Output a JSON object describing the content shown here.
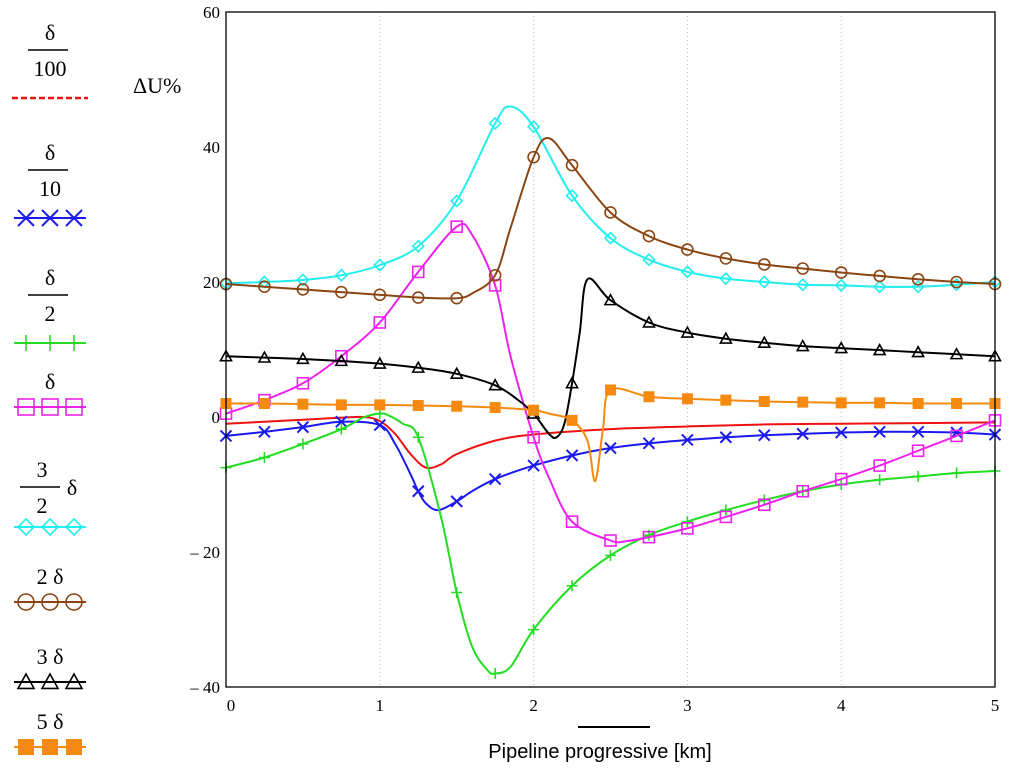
{
  "chart_data": {
    "type": "line",
    "title": "",
    "xlabel": "Pipeline progressive [km]",
    "ylabel": "ΔU%",
    "xlim": [
      0,
      5
    ],
    "ylim": [
      -40,
      60
    ],
    "xticks": [
      "0",
      "1",
      "2",
      "3",
      "4",
      "5"
    ],
    "yticks": [
      "– 40",
      "– 20",
      "0",
      "20",
      "40",
      "60"
    ],
    "yticks_values": [
      -40,
      -20,
      0,
      20,
      40,
      60
    ],
    "grid": "vertical-dotted",
    "legend_position": "left",
    "series": [
      {
        "name": "δ/100",
        "legend": {
          "num": "δ",
          "den": "100"
        },
        "color": "#ee1111",
        "marker": "none",
        "dash": "dashed-legend",
        "x": [
          0,
          0.25,
          0.5,
          0.75,
          0.9,
          1.0,
          1.1,
          1.2,
          1.3,
          1.4,
          1.5,
          1.75,
          2.0,
          2.5,
          3.0,
          3.5,
          4.0,
          4.5,
          5.0
        ],
        "y": [
          -1,
          -0.7,
          -0.4,
          -0.1,
          0,
          -0.6,
          -2.5,
          -5.5,
          -7.5,
          -7,
          -5.5,
          -3.5,
          -2.6,
          -1.8,
          -1.4,
          -1.1,
          -1.0,
          -0.9,
          -0.8
        ]
      },
      {
        "name": "δ/10",
        "legend": {
          "num": "δ",
          "den": "10"
        },
        "color": "#1a1aee",
        "marker": "x",
        "x": [
          0,
          0.25,
          0.5,
          0.75,
          1.0,
          1.1,
          1.2,
          1.25,
          1.3,
          1.38,
          1.5,
          1.6,
          1.75,
          2.0,
          2.25,
          2.5,
          2.75,
          3.0,
          3.25,
          3.5,
          3.75,
          4.0,
          4.25,
          4.5,
          4.75,
          5.0
        ],
        "y": [
          -2.8,
          -2.2,
          -1.5,
          -0.7,
          -1.2,
          -4,
          -8.5,
          -11,
          -12.8,
          -13.8,
          -12.5,
          -11,
          -9.2,
          -7.2,
          -5.7,
          -4.6,
          -3.9,
          -3.4,
          -3.0,
          -2.7,
          -2.5,
          -2.3,
          -2.2,
          -2.2,
          -2.3,
          -2.6
        ]
      },
      {
        "name": "δ/2",
        "legend": {
          "num": "δ",
          "den": "2"
        },
        "color": "#22dd22",
        "marker": "plus",
        "x": [
          0,
          0.25,
          0.5,
          0.75,
          0.9,
          1.0,
          1.05,
          1.15,
          1.25,
          1.4,
          1.5,
          1.6,
          1.7,
          1.75,
          1.85,
          2.0,
          2.25,
          2.5,
          2.75,
          3.0,
          3.25,
          3.5,
          3.75,
          4.0,
          4.25,
          4.5,
          4.75,
          5.0
        ],
        "y": [
          -7.5,
          -6,
          -4,
          -1.8,
          0,
          0.5,
          0.3,
          -1,
          -3,
          -15,
          -26,
          -34,
          -37.5,
          -38,
          -37,
          -31.5,
          -25,
          -20.5,
          -17.5,
          -15.5,
          -13.8,
          -12.3,
          -11,
          -10,
          -9.3,
          -8.8,
          -8.3,
          -8
        ]
      },
      {
        "name": "δ",
        "legend": {
          "num": "",
          "den": "δ"
        },
        "color": "#ee22ee",
        "marker": "square",
        "x": [
          0,
          0.25,
          0.5,
          0.75,
          1.0,
          1.25,
          1.5,
          1.6,
          1.75,
          1.85,
          2.0,
          2.1,
          2.25,
          2.5,
          2.6,
          2.75,
          3.0,
          3.25,
          3.5,
          3.75,
          4.0,
          4.25,
          4.5,
          4.75,
          5.0
        ],
        "y": [
          0.5,
          2.5,
          5,
          9,
          14,
          21.5,
          28.2,
          27,
          19.5,
          9,
          -3,
          -9,
          -15.5,
          -18.3,
          -18.4,
          -17.8,
          -16.5,
          -14.8,
          -13,
          -11,
          -9.2,
          -7.2,
          -5,
          -2.8,
          -0.5
        ]
      },
      {
        "name": "3/2 δ",
        "legend": {
          "num": "3",
          "den": "2",
          "suffix": "δ"
        },
        "color": "#22eeee",
        "marker": "diamond",
        "x": [
          0,
          0.25,
          0.5,
          0.75,
          1.0,
          1.25,
          1.5,
          1.75,
          1.85,
          2.0,
          2.25,
          2.5,
          2.75,
          3.0,
          3.25,
          3.5,
          3.75,
          4.0,
          4.25,
          4.5,
          4.75,
          5.0
        ],
        "y": [
          19.8,
          20,
          20.3,
          21,
          22.5,
          25.3,
          32,
          43.5,
          46,
          43,
          32.8,
          26.5,
          23.3,
          21.5,
          20.5,
          20,
          19.6,
          19.5,
          19.3,
          19.3,
          19.6,
          20
        ]
      },
      {
        "name": "2 δ",
        "legend": {
          "num": "2 δ",
          "den": ""
        },
        "color": "#8b4513",
        "marker": "circle",
        "x": [
          0,
          0.25,
          0.5,
          0.75,
          1.0,
          1.25,
          1.5,
          1.6,
          1.75,
          1.85,
          2.0,
          2.1,
          2.25,
          2.5,
          2.75,
          3.0,
          3.25,
          3.5,
          3.75,
          4.0,
          4.25,
          4.5,
          4.75,
          5.0
        ],
        "y": [
          19.7,
          19.3,
          18.9,
          18.5,
          18.1,
          17.7,
          17.6,
          18.3,
          21,
          28,
          38.5,
          41.3,
          37.3,
          30.3,
          26.8,
          24.8,
          23.5,
          22.6,
          22,
          21.4,
          20.9,
          20.4,
          20,
          19.7
        ]
      },
      {
        "name": "3 δ",
        "legend": {
          "num": "3 δ",
          "den": ""
        },
        "color": "#000000",
        "marker": "triangle",
        "x": [
          0,
          0.25,
          0.5,
          0.75,
          1.0,
          1.25,
          1.5,
          1.75,
          1.9,
          2.0,
          2.1,
          2.15,
          2.2,
          2.25,
          2.3,
          2.35,
          2.5,
          2.75,
          3.0,
          3.25,
          3.5,
          3.75,
          4.0,
          4.25,
          4.5,
          4.75,
          5.0
        ],
        "y": [
          9,
          8.8,
          8.6,
          8.3,
          7.9,
          7.3,
          6.4,
          4.7,
          2.5,
          0.5,
          -2.5,
          -3,
          -1,
          5,
          12.5,
          20.4,
          17.3,
          14,
          12.5,
          11.6,
          11,
          10.5,
          10.2,
          9.9,
          9.6,
          9.3,
          9
        ]
      },
      {
        "name": "5 δ",
        "legend": {
          "num": "5 δ",
          "den": ""
        },
        "color": "#f58a10",
        "marker": "filled-square",
        "x": [
          0,
          0.25,
          0.5,
          0.75,
          1.0,
          1.25,
          1.5,
          1.75,
          2.0,
          2.1,
          2.25,
          2.35,
          2.4,
          2.45,
          2.5,
          2.75,
          3.0,
          3.25,
          3.5,
          3.75,
          4.0,
          4.25,
          4.5,
          4.75,
          5.0
        ],
        "y": [
          2,
          2,
          1.9,
          1.8,
          1.8,
          1.7,
          1.6,
          1.4,
          1,
          0.5,
          -0.5,
          -3.5,
          -9.5,
          -2,
          4,
          3,
          2.7,
          2.5,
          2.3,
          2.2,
          2.1,
          2.1,
          2,
          2,
          2
        ]
      }
    ]
  }
}
